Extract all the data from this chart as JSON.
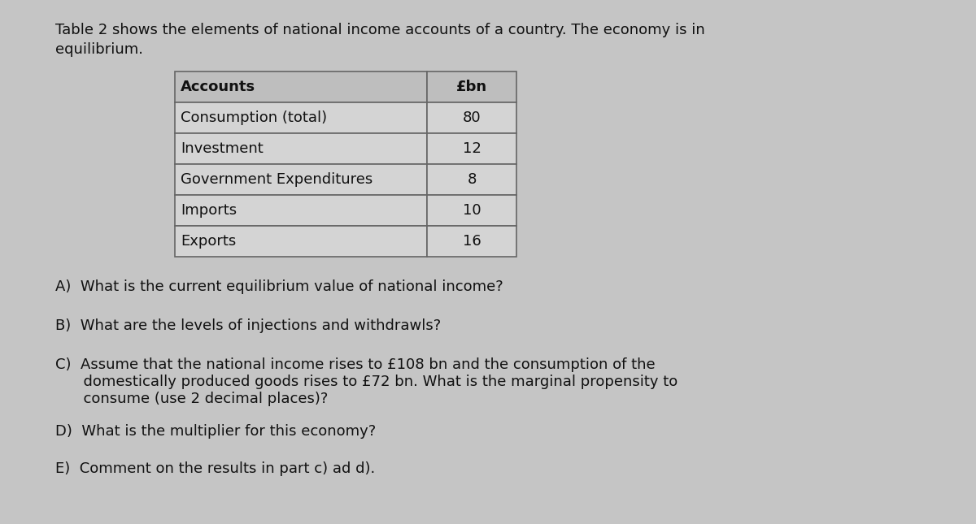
{
  "title_line1": "Table 2 shows the elements of national income accounts of a country. The economy is in",
  "title_line2": "equilibrium.",
  "table_headers": [
    "Accounts",
    "£bn"
  ],
  "table_rows": [
    [
      "Consumption (total)",
      "80"
    ],
    [
      "Investment",
      "12"
    ],
    [
      "Government Expenditures",
      "8"
    ],
    [
      "Imports",
      "10"
    ],
    [
      "Exports",
      "16"
    ]
  ],
  "q_a": "A)  What is the current equilibrium value of national income?",
  "q_b": "B)  What are the levels of injections and withdrawls?",
  "q_c_line1": "C)  Assume that the national income rises to £108 bn and the consumption of the",
  "q_c_line2": "      domestically produced goods rises to £72 bn. What is the marginal propensity to",
  "q_c_line3": "      consume (use 2 decimal places)?",
  "q_d": "D)  What is the multiplier for this economy?",
  "q_e": "E)  Comment on the results in part c) ad d).",
  "bg_color": "#c5c5c5",
  "table_bg_header": "#bebebe",
  "table_bg_row": "#d4d4d4",
  "table_border": "#666666",
  "text_color": "#111111",
  "font_size": 13.0,
  "table_font_size": 13.0
}
